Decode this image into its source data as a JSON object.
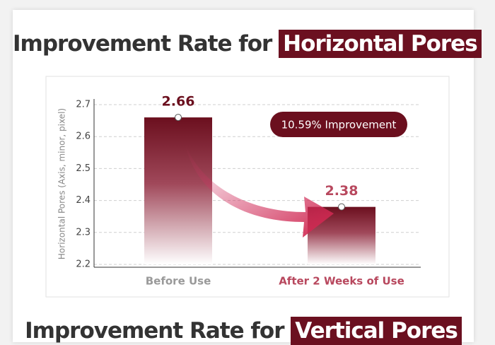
{
  "header": {
    "title_prefix": "Improvement Rate for ",
    "title_highlight": "Horizontal Pores"
  },
  "chart_data": {
    "type": "bar",
    "y_label": "Horizontal Pores (Axis, minor, pixel)",
    "categories": [
      "Before Use",
      "After 2 Weeks of Use"
    ],
    "values": [
      2.66,
      2.38
    ],
    "category_colors": [
      "#9a9a9a",
      "#b8485e"
    ],
    "color": "#6b0f1e",
    "ylim": [
      2.2,
      2.7
    ],
    "yticks": [
      2.2,
      2.3,
      2.4,
      2.5,
      2.6,
      2.7
    ],
    "grid": true,
    "annotation": "10.59% Improvement"
  },
  "next_header": {
    "title_prefix": "Improvement Rate for ",
    "title_highlight": "Vertical Pores"
  }
}
